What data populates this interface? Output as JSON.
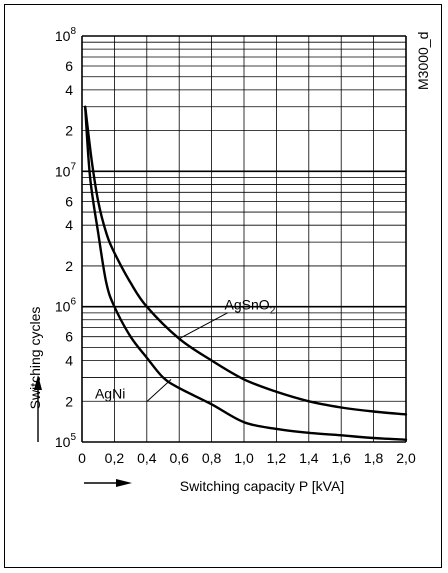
{
  "chart_data": {
    "type": "line",
    "xlabel": "Switching capacity P [kVA]",
    "ylabel": "Switching cycles",
    "figure_id": "M3000_d",
    "xlim": [
      0,
      2.0
    ],
    "ylim": [
      100000,
      100000000
    ],
    "y_scale": "log",
    "grid": true,
    "x_ticks": [
      0,
      0.2,
      0.4,
      0.6,
      0.8,
      1.0,
      1.2,
      1.4,
      1.6,
      1.8,
      2.0
    ],
    "x_tick_labels": [
      "0",
      "0,2",
      "0,4",
      "0,6",
      "0,8",
      "1,0",
      "1,2",
      "1,4",
      "1,6",
      "1,8",
      "2,0"
    ],
    "y_tick_labels": [
      {
        "value": 100000000,
        "base": "10",
        "exp": "8"
      },
      {
        "value": 60000000,
        "label": "6"
      },
      {
        "value": 40000000,
        "label": "4"
      },
      {
        "value": 20000000,
        "label": "2"
      },
      {
        "value": 10000000,
        "base": "10",
        "exp": "7"
      },
      {
        "value": 6000000,
        "label": "6"
      },
      {
        "value": 4000000,
        "label": "4"
      },
      {
        "value": 2000000,
        "label": "2"
      },
      {
        "value": 1000000,
        "base": "10",
        "exp": "6"
      },
      {
        "value": 600000,
        "label": "6"
      },
      {
        "value": 400000,
        "label": "4"
      },
      {
        "value": 200000,
        "label": "2"
      },
      {
        "value": 100000,
        "base": "10",
        "exp": "5"
      }
    ],
    "series": [
      {
        "name": "AgSnO2",
        "label_base": "AgSnO",
        "label_sub": "2",
        "x": [
          0.02,
          0.06,
          0.1,
          0.15,
          0.2,
          0.3,
          0.4,
          0.6,
          0.8,
          1.0,
          1.2,
          1.4,
          1.6,
          1.8,
          2.0
        ],
        "y": [
          30000000,
          12000000,
          6000000,
          3500000,
          2500000,
          1500000,
          1000000,
          580000,
          400000,
          290000,
          235000,
          200000,
          180000,
          168000,
          160000
        ]
      },
      {
        "name": "AgNi",
        "label": "AgNi",
        "x": [
          0.02,
          0.05,
          0.1,
          0.15,
          0.2,
          0.3,
          0.4,
          0.5,
          0.6,
          0.8,
          1.0,
          1.2,
          1.4,
          1.6,
          1.8,
          2.0
        ],
        "y": [
          30000000,
          9000000,
          3500000,
          1500000,
          1000000,
          600000,
          420000,
          300000,
          250000,
          190000,
          140000,
          125000,
          117000,
          112000,
          107000,
          104000
        ]
      }
    ]
  }
}
